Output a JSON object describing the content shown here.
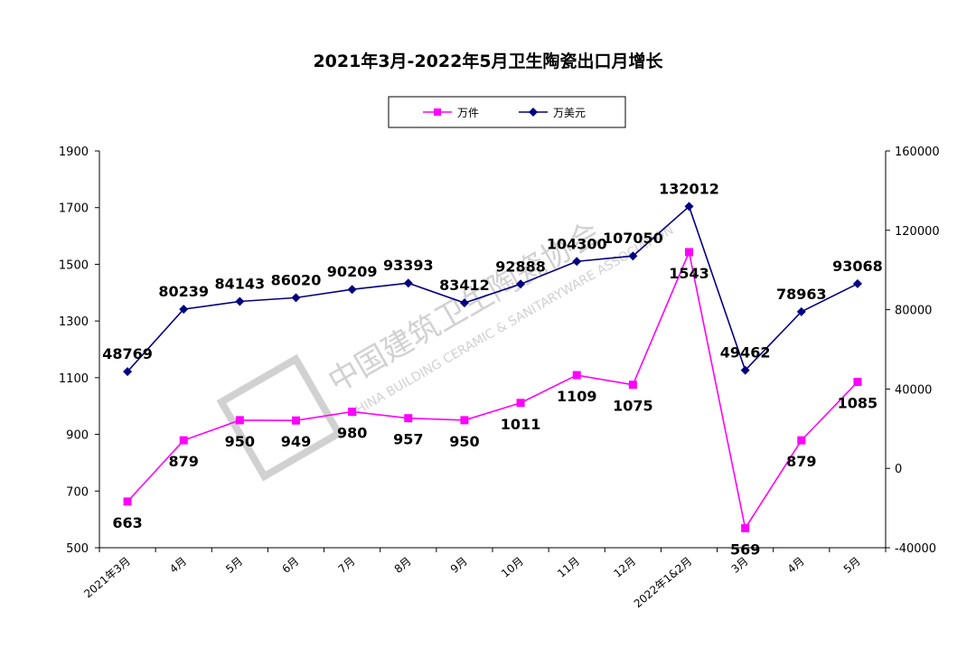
{
  "chart_data": {
    "type": "line",
    "title": "2021年3月-2022年5月卫生陶瓷出口月增长",
    "categories": [
      "2021年3月",
      "4月",
      "5月",
      "6月",
      "7月",
      "8月",
      "9月",
      "10月",
      "11月",
      "12月",
      "2022年1&2月",
      "3月",
      "4月",
      "5月"
    ],
    "series": [
      {
        "name": "万件",
        "axis": "left",
        "color": "#ff00ff",
        "marker": "square",
        "values": [
          663,
          879,
          950,
          949,
          980,
          957,
          950,
          1011,
          1109,
          1075,
          1543,
          569,
          879,
          1085
        ]
      },
      {
        "name": "万美元",
        "axis": "right",
        "color": "#000080",
        "marker": "diamond",
        "values": [
          48769,
          80239,
          84143,
          86020,
          90209,
          93393,
          83412,
          92888,
          104300,
          107050,
          132012,
          49462,
          78963,
          93068
        ]
      }
    ],
    "y_left": {
      "min": 500,
      "max": 1900,
      "ticks": [
        500,
        700,
        900,
        1100,
        1300,
        1500,
        1700,
        1900
      ]
    },
    "y_right": {
      "min": -40000,
      "max": 160000,
      "ticks": [
        -40000,
        0,
        40000,
        80000,
        120000,
        160000
      ]
    },
    "legend_position": "top-center",
    "grid": false
  },
  "watermark": {
    "text": "中国建筑卫生陶瓷协会",
    "subtext": "CHINA BUILDING CERAMIC & SANITARYWARE ASSOCIATION"
  }
}
